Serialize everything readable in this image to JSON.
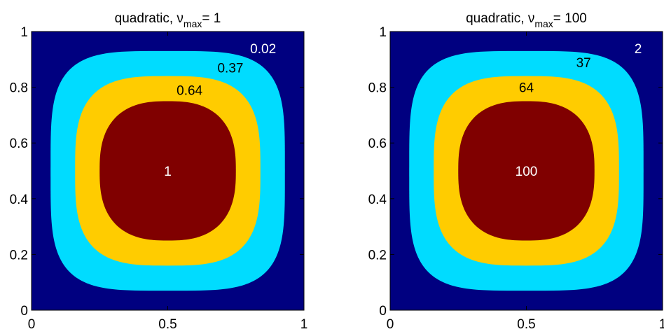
{
  "chart_data": [
    {
      "type": "heatmap",
      "title": "quadratic, ν",
      "title_sub": "max",
      "title_suffix": "= 1",
      "xlim": [
        0,
        1
      ],
      "ylim": [
        0,
        1
      ],
      "x_ticks": [
        "0",
        "0.5",
        "1"
      ],
      "y_ticks": [
        "0",
        "0.2",
        "0.4",
        "0.6",
        "0.8",
        "1"
      ],
      "contour_labels": [
        {
          "text": "0.02",
          "x": 0.85,
          "y": 0.94,
          "color": "#ffffff"
        },
        {
          "text": "0.37",
          "x": 0.73,
          "y": 0.87,
          "color": "#000000"
        },
        {
          "text": "0.64",
          "x": 0.58,
          "y": 0.79,
          "color": "#000000"
        },
        {
          "text": "1",
          "x": 0.5,
          "y": 0.5,
          "color": "#ffffff"
        }
      ]
    },
    {
      "type": "heatmap",
      "title": "quadratic, ν",
      "title_sub": "max",
      "title_suffix": "= 100",
      "xlim": [
        0,
        1
      ],
      "ylim": [
        0,
        1
      ],
      "x_ticks": [
        "0",
        "0.5",
        "1"
      ],
      "y_ticks": [
        "0",
        "0.2",
        "0.4",
        "0.6",
        "0.8",
        "1"
      ],
      "contour_labels": [
        {
          "text": "2",
          "x": 0.91,
          "y": 0.94,
          "color": "#ffffff"
        },
        {
          "text": "37",
          "x": 0.71,
          "y": 0.89,
          "color": "#000000"
        },
        {
          "text": "64",
          "x": 0.5,
          "y": 0.8,
          "color": "#000000"
        },
        {
          "text": "100",
          "x": 0.5,
          "y": 0.5,
          "color": "#ffffff"
        }
      ]
    }
  ],
  "colors": {
    "background": "#000080",
    "level_1": "#00dcff",
    "level_2": "#ffcc00",
    "level_3": "#800000"
  }
}
